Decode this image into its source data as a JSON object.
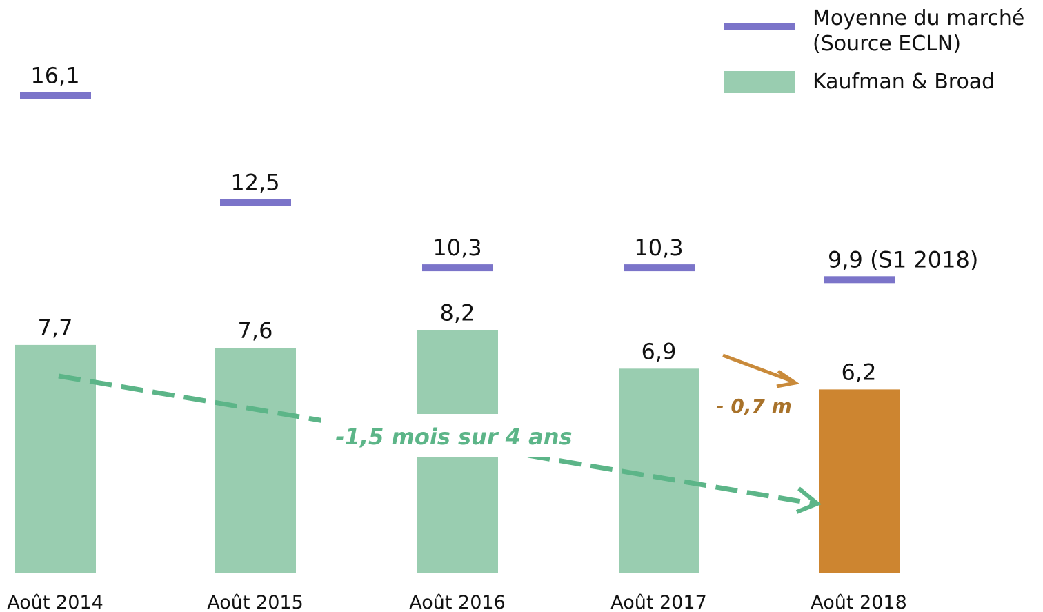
{
  "chart_data": {
    "type": "bar",
    "categories": [
      "Août 2014",
      "Août 2015",
      "Août 2016",
      "Août 2017",
      "Août 2018"
    ],
    "series": [
      {
        "name": "Moyenne du marché (Source ECLN)",
        "color": "#7b74c9",
        "values": [
          16.1,
          12.5,
          10.3,
          10.3,
          9.9
        ],
        "value_labels": [
          "16,1",
          "12,5",
          "10,3",
          "10,3",
          "9,9 (S1 2018)"
        ]
      },
      {
        "name": "Kaufman & Broad",
        "color": "#99cdb0",
        "colors": [
          "#99cdb0",
          "#99cdb0",
          "#99cdb0",
          "#99cdb0",
          "#cd8530"
        ],
        "values": [
          7.7,
          7.6,
          8.2,
          6.9,
          6.2
        ],
        "value_labels": [
          "7,7",
          "7,6",
          "8,2",
          "6,9",
          "6,2"
        ]
      }
    ],
    "annotations": [
      "-1,5 mois sur 4 ans",
      "- 0,7 m"
    ],
    "ylim": [
      0,
      17
    ]
  }
}
